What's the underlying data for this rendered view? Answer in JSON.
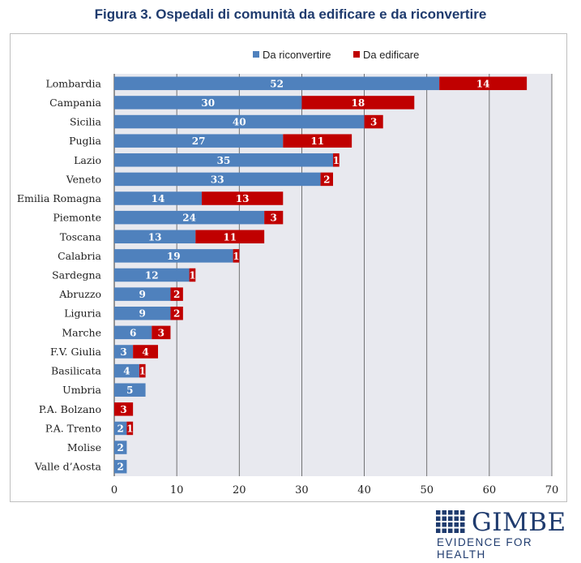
{
  "figure_title": "Figura 3. Ospedali di comunità da edificare e da riconvertire",
  "logo": {
    "name": "GIMBE",
    "tagline": "EVIDENCE FOR HEALTH"
  },
  "colors": {
    "riconvertire": "#4f81bd",
    "edificare": "#c00000",
    "plot_background": "#e8e9ef",
    "brand": "#1f3b6e"
  },
  "chart_data": {
    "type": "bar",
    "orientation": "horizontal",
    "stacked": true,
    "categories": [
      "Lombardia",
      "Campania",
      "Sicilia",
      "Puglia",
      "Lazio",
      "Veneto",
      "Emilia Romagna",
      "Piemonte",
      "Toscana",
      "Calabria",
      "Sardegna",
      "Abruzzo",
      "Liguria",
      "Marche",
      "F.V. Giulia",
      "Basilicata",
      "Umbria",
      "P.A. Bolzano",
      "P.A. Trento",
      "Molise",
      "Valle d’Aosta"
    ],
    "series": [
      {
        "name": "Da riconvertire",
        "values": [
          52,
          30,
          40,
          27,
          35,
          33,
          14,
          24,
          13,
          19,
          12,
          9,
          9,
          6,
          3,
          4,
          5,
          0,
          2,
          2,
          2
        ]
      },
      {
        "name": "Da edificare",
        "values": [
          14,
          18,
          3,
          11,
          1,
          2,
          13,
          3,
          11,
          1,
          1,
          2,
          2,
          3,
          4,
          1,
          0,
          3,
          1,
          0,
          0
        ]
      }
    ],
    "xlim": [
      0,
      70
    ],
    "xticks": [
      "0",
      "10",
      "20",
      "30",
      "40",
      "50",
      "60",
      "70"
    ],
    "grid": true,
    "legend_position": "top-right"
  }
}
